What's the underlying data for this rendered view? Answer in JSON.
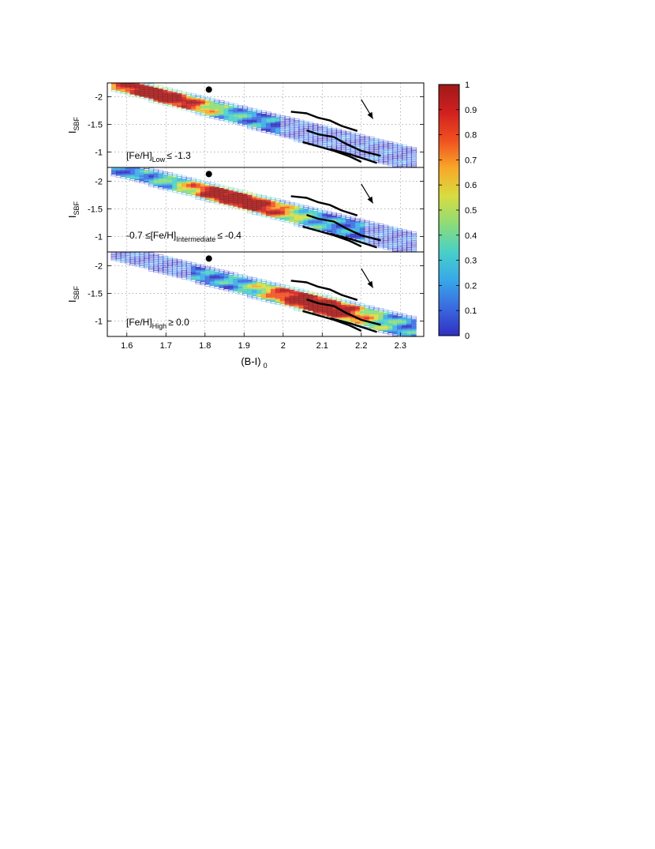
{
  "chart_data": {
    "type": "heatmap",
    "xlabel": "(B-I)",
    "xlabel_sub": "0",
    "ylabel": "I",
    "ylabel_sub": "SBF",
    "xlim": [
      1.55,
      2.36
    ],
    "ylim": [
      -0.72,
      -2.25
    ],
    "x_ticks": [
      "1.6",
      "1.7",
      "1.8",
      "1.9",
      "2",
      "2.1",
      "2.2",
      "2.3"
    ],
    "y_ticks": [
      "-2",
      "-1.5",
      "-1"
    ],
    "grid": true,
    "colorbar": {
      "ticks": [
        "1",
        "0.9",
        "0.8",
        "0.7",
        "0.6",
        "0.5",
        "0.4",
        "0.3",
        "0.2",
        "0.1",
        "0"
      ],
      "colors": [
        "#3030c0",
        "#3a6ae0",
        "#38a8e8",
        "#48d0c8",
        "#8cdc78",
        "#d8dc40",
        "#f8a828",
        "#f05020",
        "#d02020",
        "#a01818"
      ]
    },
    "panels": [
      {
        "label_pre": "[Fe/H]",
        "label_sub": "Low",
        "label_post": "≤ -1.3",
        "peak_x": 1.67,
        "peak_level": 1.0
      },
      {
        "label_pre": "-0.7 ≤[Fe/H]",
        "label_sub": "Intermediate",
        "label_post": "≤ -0.4",
        "peak_x": 1.88,
        "peak_level": 1.0
      },
      {
        "label_pre": "[Fe/H]",
        "label_sub": "High",
        "label_post": "≥ 0.0",
        "peak_x": 2.08,
        "peak_level": 1.0
      }
    ],
    "reference_point": {
      "x": 1.81,
      "y": -2.13
    },
    "arrow": {
      "x0": 2.2,
      "y0": -1.95,
      "x1": 2.23,
      "y1": -1.6
    },
    "model_tracks": [
      [
        [
          2.02,
          -1.73
        ],
        [
          2.06,
          -1.7
        ],
        [
          2.09,
          -1.62
        ],
        [
          2.12,
          -1.57
        ],
        [
          2.15,
          -1.47
        ],
        [
          2.19,
          -1.38
        ]
      ],
      [
        [
          2.06,
          -1.39
        ],
        [
          2.09,
          -1.32
        ],
        [
          2.13,
          -1.27
        ],
        [
          2.16,
          -1.15
        ],
        [
          2.2,
          -1.02
        ],
        [
          2.25,
          -0.93
        ]
      ],
      [
        [
          2.05,
          -1.18
        ],
        [
          2.09,
          -1.1
        ],
        [
          2.13,
          -1.02
        ],
        [
          2.17,
          -0.92
        ],
        [
          2.2,
          -0.82
        ]
      ],
      [
        [
          2.12,
          -1.05
        ],
        [
          2.17,
          -0.96
        ],
        [
          2.21,
          -0.87
        ],
        [
          2.24,
          -0.8
        ]
      ]
    ]
  }
}
